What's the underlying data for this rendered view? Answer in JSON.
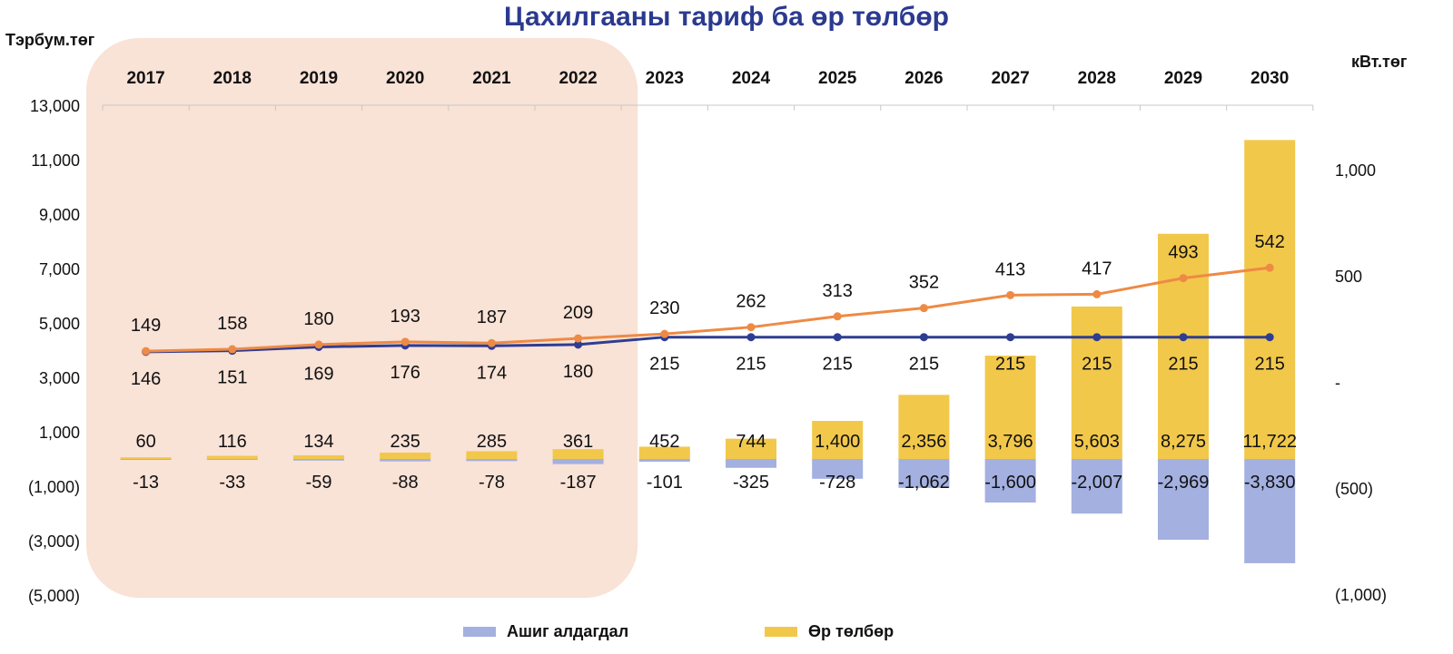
{
  "title": "Цахилгааны тариф ба өр төлбөр",
  "unit_left": "Тэрбум.төг",
  "unit_right": "кВт.төг",
  "colors": {
    "loss": "#a3b0e0",
    "debt": "#f2c84b",
    "tariff_line": "#ee8a44",
    "tariff_line2": "#2e3d92",
    "highlight": "#f9e2d6"
  },
  "chart_data": {
    "type": "bar",
    "title": "Цахилгааны тариф ба өр төлбөр",
    "categories": [
      "2017",
      "2018",
      "2019",
      "2020",
      "2021",
      "2022",
      "2023",
      "2024",
      "2025",
      "2026",
      "2027",
      "2028",
      "2029",
      "2030"
    ],
    "left_axis": {
      "label": "Тэрбум.төг",
      "ylim": [
        -5000,
        13000
      ],
      "ticks": [
        "13,000",
        "11,000",
        "9,000",
        "7,000",
        "5,000",
        "3,000",
        "1,000",
        "(1,000)",
        "(3,000)",
        "(5,000)"
      ]
    },
    "right_axis": {
      "label": "кВт.төг",
      "ylim": [
        -1000,
        1000
      ],
      "ticks": [
        "1,000",
        "500",
        "-",
        "(500)",
        "(1,000)"
      ]
    },
    "series": [
      {
        "name": "Ашиг алдагдал",
        "kind": "bar",
        "axis": "left",
        "values": [
          -13,
          -33,
          -59,
          -88,
          -78,
          -187,
          -101,
          -325,
          -728,
          -1062,
          -1600,
          -2007,
          -2969,
          -3830
        ],
        "labels": [
          "-13",
          "-33",
          "-59",
          "-88",
          "-78",
          "-187",
          "-101",
          "-325",
          "-728",
          "-1,062",
          "-1,600",
          "-2,007",
          "-2,969",
          "-3,830"
        ]
      },
      {
        "name": "Өр төлбөр",
        "kind": "bar",
        "axis": "left",
        "values": [
          60,
          116,
          134,
          235,
          285,
          361,
          452,
          744,
          1400,
          2356,
          3796,
          5603,
          8275,
          11722
        ],
        "labels": [
          "60",
          "116",
          "134",
          "235",
          "285",
          "361",
          "452",
          "744",
          "1,400",
          "2,356",
          "3,796",
          "5,603",
          "8,275",
          "11,722"
        ]
      },
      {
        "kind": "line",
        "axis": "right",
        "values": [
          149,
          158,
          180,
          193,
          187,
          209,
          230,
          262,
          313,
          352,
          413,
          417,
          493,
          542
        ],
        "labels": [
          "149",
          "158",
          "180",
          "193",
          "187",
          "209",
          "230",
          "262",
          "313",
          "352",
          "413",
          "417",
          "493",
          "542"
        ]
      },
      {
        "kind": "line",
        "axis": "right",
        "values": [
          146,
          151,
          169,
          176,
          174,
          180,
          215,
          215,
          215,
          215,
          215,
          215,
          215,
          215
        ],
        "labels": [
          "146",
          "151",
          "169",
          "176",
          "174",
          "180",
          "215",
          "215",
          "215",
          "215",
          "215",
          "215",
          "215",
          "215"
        ]
      }
    ],
    "highlight_years": [
      "2017",
      "2022"
    ],
    "legend": "bottom"
  }
}
